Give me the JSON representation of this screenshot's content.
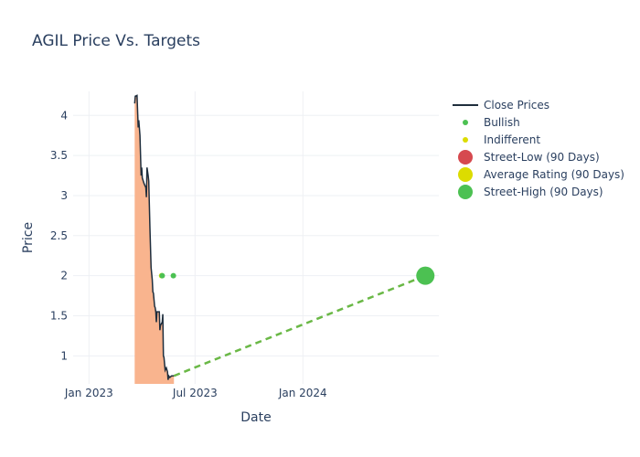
{
  "chart_data": {
    "type": "line",
    "title": "AGIL Price Vs. Targets",
    "xlabel": "Date",
    "ylabel": "Price",
    "x_range": [
      "2022-12-05",
      "2024-08-20"
    ],
    "ylim": [
      0.65,
      4.3
    ],
    "x_ticks": [
      {
        "date": "2023-01-01",
        "label": "Jan 2023"
      },
      {
        "date": "2023-07-01",
        "label": "Jul 2023"
      },
      {
        "date": "2024-01-01",
        "label": "Jan 2024"
      }
    ],
    "y_ticks": [
      {
        "value": 1,
        "label": "1"
      },
      {
        "value": 1.5,
        "label": "1.5"
      },
      {
        "value": 2,
        "label": "2"
      },
      {
        "value": 2.5,
        "label": "2.5"
      },
      {
        "value": 3,
        "label": "3"
      },
      {
        "value": 3.5,
        "label": "3.5"
      },
      {
        "value": 4,
        "label": "4"
      }
    ],
    "grid": true,
    "legend_position": "right",
    "close_prices": {
      "name": "Close Prices",
      "color": "#1f2e3d",
      "fill_color": "#f9b48e",
      "points": [
        [
          "2023-03-20",
          4.15
        ],
        [
          "2023-03-21",
          4.24
        ],
        [
          "2023-03-24",
          4.25
        ],
        [
          "2023-03-26",
          3.85
        ],
        [
          "2023-03-27",
          3.94
        ],
        [
          "2023-03-29",
          3.75
        ],
        [
          "2023-03-31",
          3.25
        ],
        [
          "2023-04-01",
          3.35
        ],
        [
          "2023-04-02",
          3.22
        ],
        [
          "2023-04-05",
          3.15
        ],
        [
          "2023-04-08",
          3.1
        ],
        [
          "2023-04-09",
          2.98
        ],
        [
          "2023-04-10",
          3.35
        ],
        [
          "2023-04-12",
          3.25
        ],
        [
          "2023-04-13",
          3.18
        ],
        [
          "2023-04-15",
          2.6
        ],
        [
          "2023-04-17",
          2.1
        ],
        [
          "2023-04-19",
          1.95
        ],
        [
          "2023-04-20",
          1.8
        ],
        [
          "2023-04-21",
          1.78
        ],
        [
          "2023-04-23",
          1.62
        ],
        [
          "2023-04-24",
          1.6
        ],
        [
          "2023-04-25",
          1.55
        ],
        [
          "2023-04-26",
          1.42
        ],
        [
          "2023-04-27",
          1.55
        ],
        [
          "2023-05-01",
          1.55
        ],
        [
          "2023-05-02",
          1.32
        ],
        [
          "2023-05-03",
          1.38
        ],
        [
          "2023-05-06",
          1.42
        ],
        [
          "2023-05-07",
          1.52
        ],
        [
          "2023-05-08",
          1.0
        ],
        [
          "2023-05-09",
          0.98
        ],
        [
          "2023-05-11",
          0.82
        ],
        [
          "2023-05-13",
          0.85
        ],
        [
          "2023-05-15",
          0.8
        ],
        [
          "2023-05-16",
          0.7
        ],
        [
          "2023-05-17",
          0.75
        ],
        [
          "2023-05-19",
          0.73
        ],
        [
          "2023-05-22",
          0.75
        ],
        [
          "2023-05-26",
          0.75
        ]
      ]
    },
    "bullish": {
      "name": "Bullish",
      "color": "#4cc152",
      "points": [
        [
          "2023-05-06",
          2.0
        ],
        [
          "2023-05-25",
          2.0
        ]
      ]
    },
    "indifferent": {
      "name": "Indifferent",
      "color": "#dcdc00",
      "points": [
        [
          "2023-05-05",
          2.0
        ]
      ]
    },
    "street_low": {
      "name": "Street-Low (90 Days)",
      "color": "#d6494f"
    },
    "average_rating": {
      "name": "Average Rating (90 Days)",
      "color": "#dcdc00"
    },
    "street_high": {
      "name": "Street-High (90 Days)",
      "color": "#4cc152",
      "point": [
        "2024-07-28",
        2.0
      ]
    },
    "target_line": {
      "color": "#6ab846",
      "points": [
        [
          "2023-05-26",
          0.75
        ],
        [
          "2024-07-28",
          2.0
        ]
      ]
    }
  }
}
